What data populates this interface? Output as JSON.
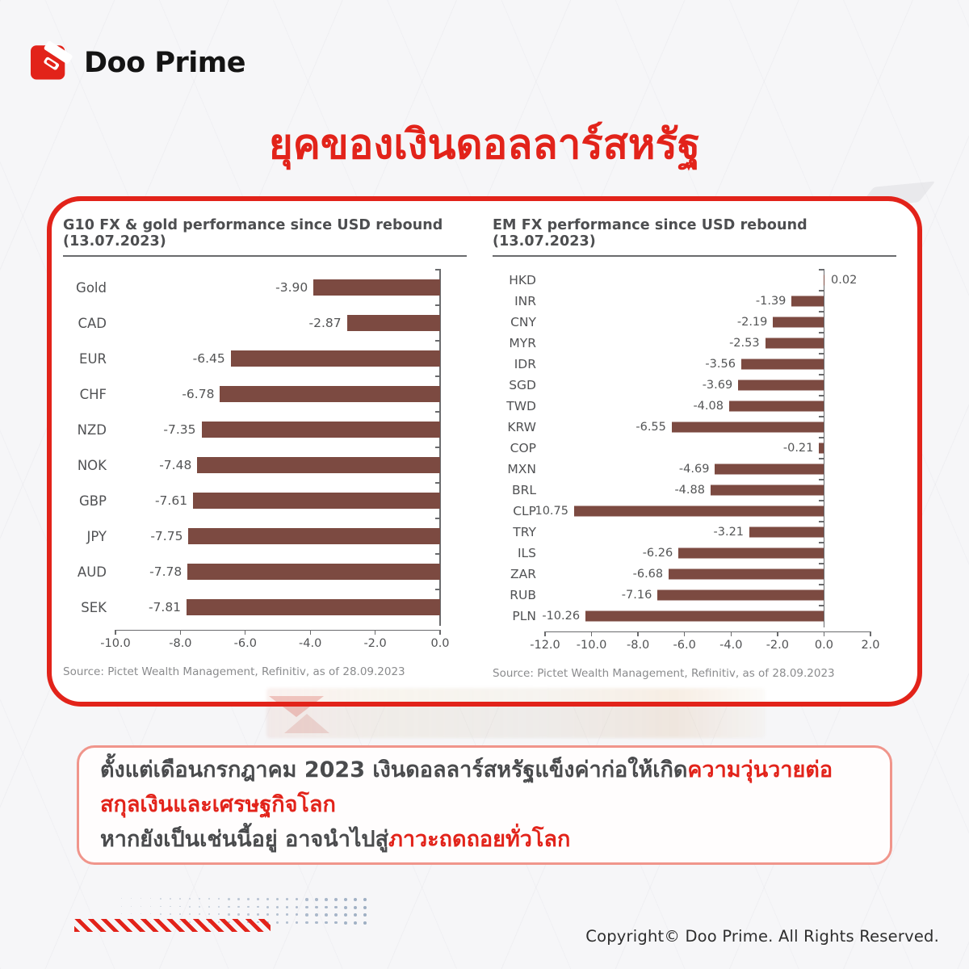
{
  "brand": {
    "name": "Doo Prime",
    "logo_color": "#e2231a"
  },
  "header": {
    "title": "ยุคของเงินดอลลาร์สหรัฐ"
  },
  "chart_data": [
    {
      "type": "bar",
      "orientation": "horizontal",
      "title": "G10 FX & gold performance since USD rebound (13.07.2023)",
      "source": "Source: Pictet Wealth Management, Refinitiv, as of 28.09.2023",
      "categories": [
        "Gold",
        "CAD",
        "EUR",
        "CHF",
        "NZD",
        "NOK",
        "GBP",
        "JPY",
        "AUD",
        "SEK"
      ],
      "values": [
        -3.9,
        -2.87,
        -6.45,
        -6.78,
        -7.35,
        -7.48,
        -7.61,
        -7.75,
        -7.78,
        -7.81
      ],
      "value_labels": [
        "-3.90",
        "-2.87",
        "-6.45",
        "-6.78",
        "-7.35",
        "-7.48",
        "-7.61",
        "-7.75",
        "-7.78",
        "-7.81"
      ],
      "xlim": [
        -10.0,
        0.0
      ],
      "xticks": [
        "-10.0",
        "-8.0",
        "-6.0",
        "-4.0",
        "-2.0",
        "0.0"
      ],
      "bar_color": "#7c4a41",
      "grid": false,
      "legend": false
    },
    {
      "type": "bar",
      "orientation": "horizontal",
      "title": "EM FX performance since USD rebound (13.07.2023)",
      "source": "Source: Pictet Wealth Management, Refinitiv, as of 28.09.2023",
      "categories": [
        "HKD",
        "INR",
        "CNY",
        "MYR",
        "IDR",
        "SGD",
        "TWD",
        "KRW",
        "COP",
        "MXN",
        "BRL",
        "CLP",
        "TRY",
        "ILS",
        "ZAR",
        "RUB",
        "PLN"
      ],
      "values": [
        0.02,
        -1.39,
        -2.19,
        -2.53,
        -3.56,
        -3.69,
        -4.08,
        -6.55,
        -0.21,
        -4.69,
        -4.88,
        -10.75,
        -3.21,
        -6.26,
        -6.68,
        -7.16,
        -10.26
      ],
      "value_labels": [
        "0.02",
        "-1.39",
        "-2.19",
        "-2.53",
        "-3.56",
        "-3.69",
        "-4.08",
        "-6.55",
        "-0.21",
        "-4.69",
        "-4.88",
        "-10.75",
        "-3.21",
        "-6.26",
        "-6.68",
        "-7.16",
        "-10.26"
      ],
      "xlim": [
        -12.0,
        2.0
      ],
      "xticks": [
        "-12.0",
        "-10.0",
        "-8.0",
        "-6.0",
        "-4.0",
        "-2.0",
        "0.0",
        "2.0"
      ],
      "bar_color": "#7c4a41",
      "grid": false,
      "legend": false
    }
  ],
  "summary": {
    "lines": [
      {
        "segments": [
          {
            "text": "ตั้งแต่เดือนกรกฎาคม 2023 เงินดอลลาร์สหรัฐแข็งค่าก่อให้เกิด",
            "red": false
          },
          {
            "text": "ความวุ่นวายต่อ",
            "red": true
          }
        ]
      },
      {
        "segments": [
          {
            "text": "สกุลเงินและเศรษฐกิจโลก",
            "red": true
          }
        ]
      },
      {
        "segments": [
          {
            "text": "หากยังเป็นเช่นนี้อยู่ อาจนำไปสู่",
            "red": false
          },
          {
            "text": "ภาวะถดถอยทั่วโลก",
            "red": true
          }
        ]
      }
    ]
  },
  "footer": {
    "copyright": "Copyright© Doo Prime. All Rights Reserved."
  },
  "colors": {
    "accent_red": "#e2231a",
    "bar_maroon": "#7c4a41",
    "text_gray": "#4a4b4d",
    "axis_gray": "#6a6b6d",
    "dot_blue_gray": "#9cadc2"
  }
}
